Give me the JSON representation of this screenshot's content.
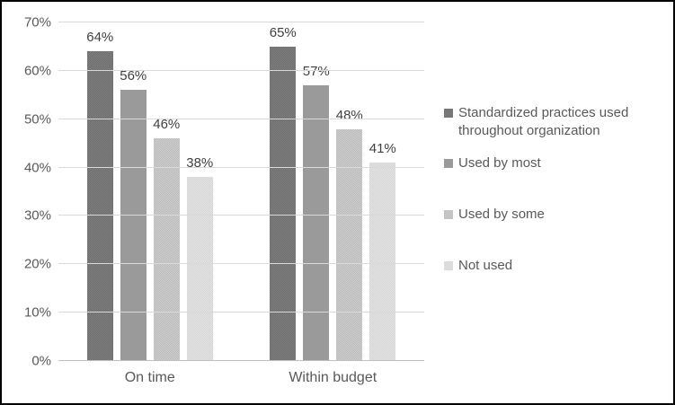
{
  "chart_data": {
    "type": "bar",
    "title": "",
    "xlabel": "",
    "ylabel": "",
    "categories": [
      "On time",
      "Within budget"
    ],
    "series": [
      {
        "name": "Standardized practices used throughout organization",
        "values": [
          64,
          65
        ],
        "color": "#6e6e6e",
        "pattern_color": "#7f7f7f"
      },
      {
        "name": "Used by most",
        "values": [
          56,
          57
        ],
        "color": "#9a9a9a",
        "pattern_color": null
      },
      {
        "name": "Used by some",
        "values": [
          46,
          48
        ],
        "color": "#bababa",
        "pattern_color": "#cecece"
      },
      {
        "name": "Not used",
        "values": [
          38,
          41
        ],
        "color": "#d6d6d6",
        "pattern_color": "#e3e3e3"
      }
    ],
    "value_suffix": "%",
    "ylim": [
      0,
      70
    ],
    "y_tick_step": 10,
    "y_ticks": [
      "0%",
      "10%",
      "20%",
      "30%",
      "40%",
      "50%",
      "60%",
      "70%"
    ],
    "grid": true,
    "legend_position": "right",
    "data_labels": "outside-end"
  },
  "styles": {
    "grid_color": "#d9d9d9",
    "axis_line_color": "#bfbfbf",
    "tick_label_color": "#595959",
    "data_label_color": "#404040",
    "frame_border_color": "#000000",
    "background": "#ffffff"
  }
}
